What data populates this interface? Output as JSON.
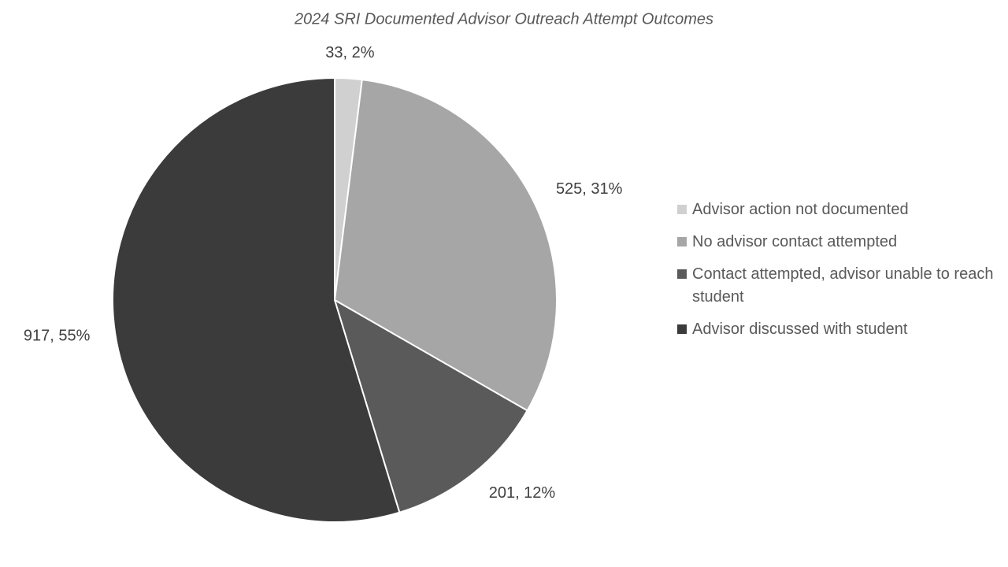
{
  "chart_data": {
    "type": "pie",
    "title": "2024 SRI Documented Advisor Outreach Attempt Outcomes",
    "categories": [
      "Advisor action not documented",
      "No advisor contact attempted",
      "Contact attempted, advisor unable to reach student",
      "Advisor discussed with student"
    ],
    "values": [
      33,
      525,
      201,
      917
    ],
    "value_labels": [
      "33, 2%",
      "525, 31%",
      "201, 12%",
      "917, 55%"
    ],
    "colors": [
      "#d0d0d0",
      "#a6a6a6",
      "#5a5a5a",
      "#3b3b3b"
    ],
    "legend": "right"
  }
}
